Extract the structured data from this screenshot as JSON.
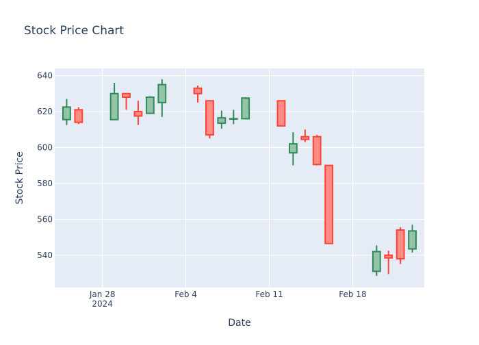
{
  "chart_data": {
    "type": "candlestick",
    "title": "Stock Price Chart",
    "xlabel": "Date",
    "ylabel": "Stock Price",
    "ylim": [
      522,
      644
    ],
    "xlim": [
      "2024-01-24T00:00",
      "2024-02-24T00:00"
    ],
    "x_ticks": [
      {
        "date": "2024-01-28",
        "label": "Jan 28",
        "sublabel": "2024"
      },
      {
        "date": "2024-02-04",
        "label": "Feb 4",
        "sublabel": ""
      },
      {
        "date": "2024-02-11",
        "label": "Feb 11",
        "sublabel": ""
      },
      {
        "date": "2024-02-18",
        "label": "Feb 18",
        "sublabel": ""
      }
    ],
    "y_ticks": [
      540,
      560,
      580,
      600,
      620,
      640
    ],
    "increasing_color": "#2e8b57",
    "increasing_fill": "#93c4a9",
    "decreasing_color": "#ff4136",
    "decreasing_fill": "#ff8c85",
    "plot_bg": "#e5ecf6",
    "grid": true,
    "legend": false,
    "candles": [
      {
        "date": "2024-01-25",
        "open": 615.5,
        "high": 627.0,
        "low": 612.5,
        "close": 622.5
      },
      {
        "date": "2024-01-26",
        "open": 621.0,
        "high": 622.5,
        "low": 613.0,
        "close": 614.0
      },
      {
        "date": "2024-01-29",
        "open": 615.5,
        "high": 636.0,
        "low": 615.5,
        "close": 630.0
      },
      {
        "date": "2024-01-30",
        "open": 630.0,
        "high": 630.0,
        "low": 621.0,
        "close": 628.0
      },
      {
        "date": "2024-01-31",
        "open": 620.0,
        "high": 626.0,
        "low": 612.5,
        "close": 617.5
      },
      {
        "date": "2024-02-01",
        "open": 619.0,
        "high": 628.5,
        "low": 619.0,
        "close": 628.0
      },
      {
        "date": "2024-02-02",
        "open": 625.0,
        "high": 638.0,
        "low": 617.0,
        "close": 635.0
      },
      {
        "date": "2024-02-05",
        "open": 633.0,
        "high": 634.5,
        "low": 625.0,
        "close": 630.0
      },
      {
        "date": "2024-02-06",
        "open": 626.0,
        "high": 626.0,
        "low": 605.0,
        "close": 607.0
      },
      {
        "date": "2024-02-07",
        "open": 613.5,
        "high": 620.5,
        "low": 610.5,
        "close": 616.5
      },
      {
        "date": "2024-02-08",
        "open": 616.0,
        "high": 621.0,
        "low": 613.0,
        "close": 616.0
      },
      {
        "date": "2024-02-09",
        "open": 616.0,
        "high": 628.0,
        "low": 616.0,
        "close": 627.5
      },
      {
        "date": "2024-02-12",
        "open": 626.0,
        "high": 626.0,
        "low": 612.0,
        "close": 612.0
      },
      {
        "date": "2024-02-13",
        "open": 597.0,
        "high": 608.5,
        "low": 590.0,
        "close": 602.0
      },
      {
        "date": "2024-02-14",
        "open": 606.0,
        "high": 610.0,
        "low": 603.0,
        "close": 604.5
      },
      {
        "date": "2024-02-15",
        "open": 606.0,
        "high": 607.0,
        "low": 590.0,
        "close": 590.5
      },
      {
        "date": "2024-02-16",
        "open": 590.0,
        "high": 590.0,
        "low": 546.5,
        "close": 546.5
      },
      {
        "date": "2024-02-20",
        "open": 531.0,
        "high": 545.5,
        "low": 528.5,
        "close": 542.0
      },
      {
        "date": "2024-02-21",
        "open": 540.0,
        "high": 542.5,
        "low": 529.5,
        "close": 538.5
      },
      {
        "date": "2024-02-22",
        "open": 554.0,
        "high": 555.5,
        "low": 535.0,
        "close": 538.0
      },
      {
        "date": "2024-02-23",
        "open": 543.5,
        "high": 557.0,
        "low": 541.5,
        "close": 553.5
      }
    ]
  }
}
